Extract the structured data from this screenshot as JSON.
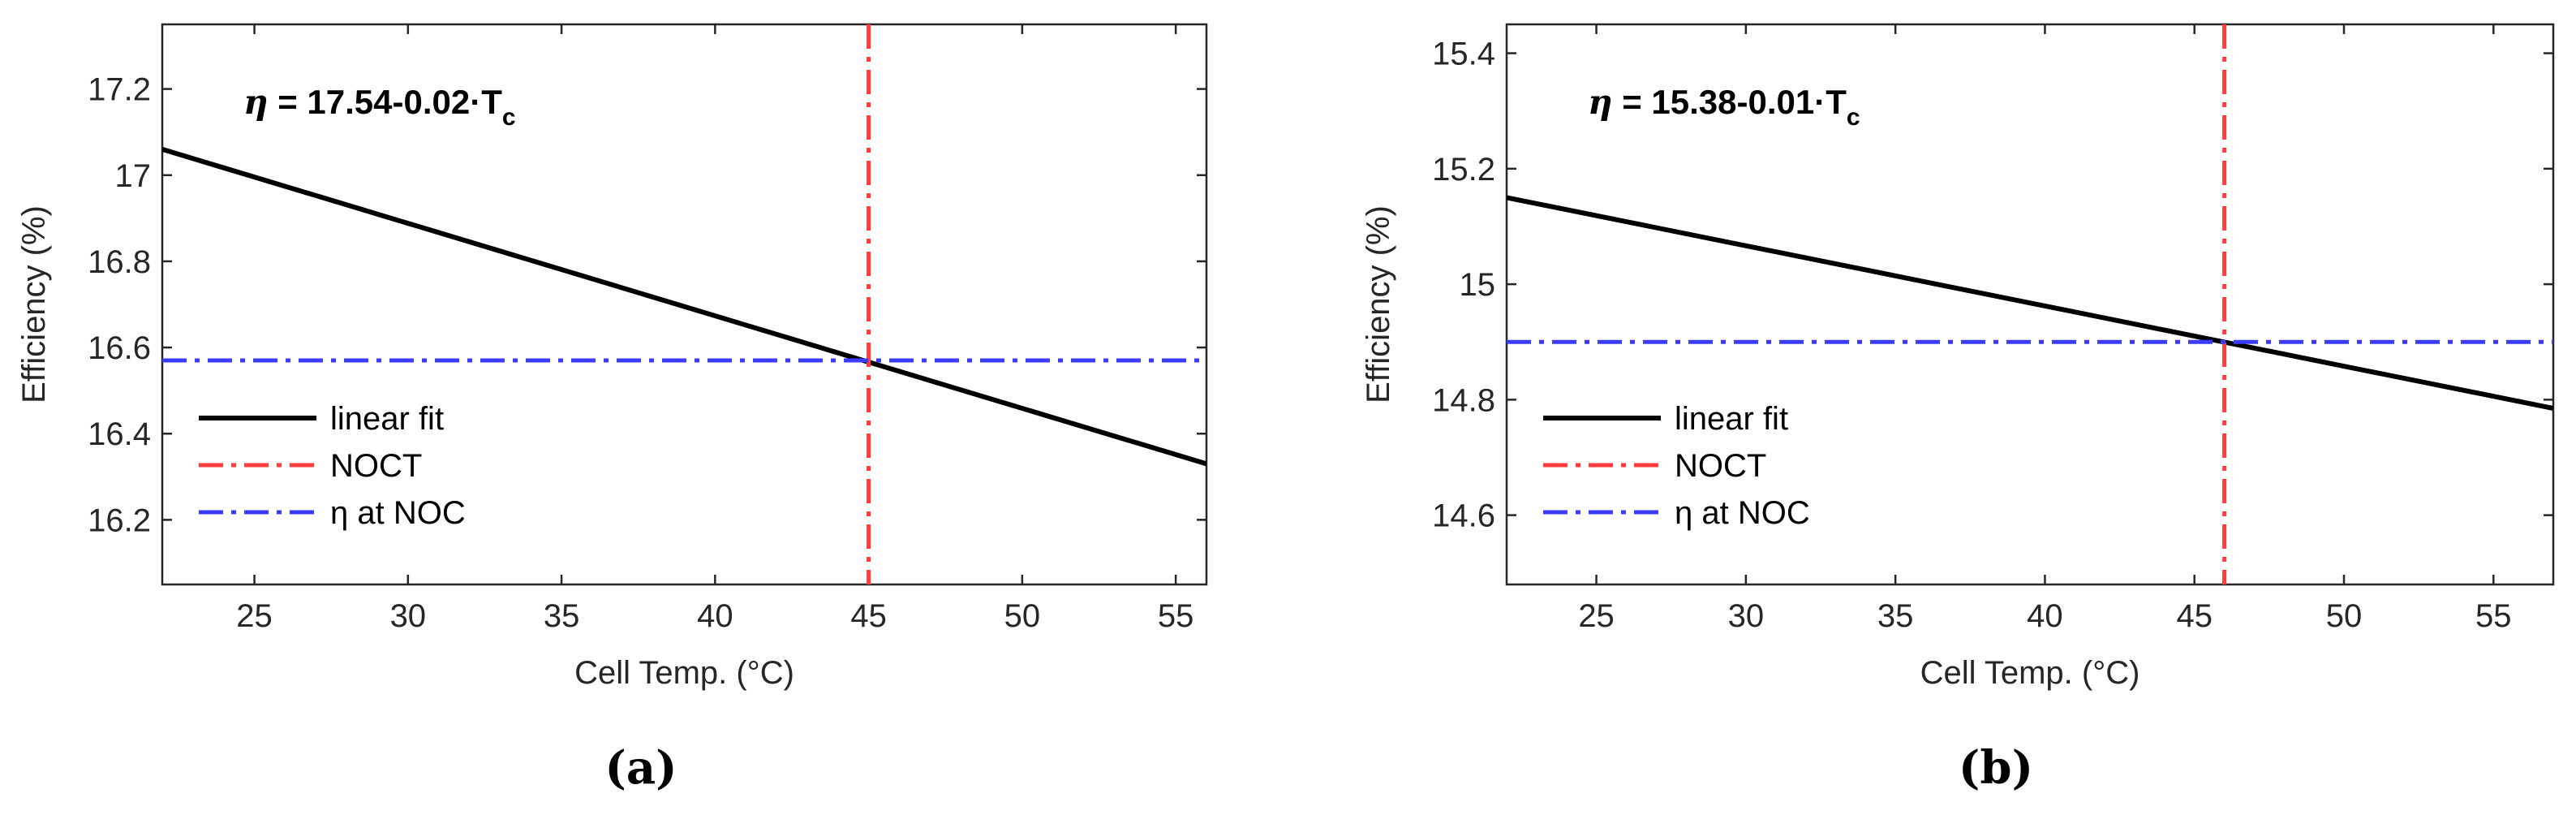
{
  "chart_data": [
    {
      "type": "line",
      "panel": "(a)",
      "equation": {
        "symbol": "η",
        "text": " = 17.54-0.02·T",
        "subscript": "c"
      },
      "xlabel": "Cell Temp. (°C)",
      "ylabel": "Efficiency (%)",
      "xlim": [
        22,
        56
      ],
      "ylim": [
        16.05,
        17.35
      ],
      "xticks": [
        25,
        30,
        35,
        40,
        45,
        50,
        55
      ],
      "yticks": [
        16.2,
        16.4,
        16.6,
        16.8,
        17,
        17.2
      ],
      "grid": false,
      "legend_position": "lower-left",
      "series": [
        {
          "name": "linear fit",
          "kind": "line",
          "x": [
            22,
            56
          ],
          "y": [
            17.06,
            16.33
          ],
          "color": "#000000",
          "dash": "solid"
        },
        {
          "name": "NOCT",
          "kind": "vline",
          "x": 45,
          "color": "#ff3b3b",
          "dash": "dashdot"
        },
        {
          "name": "η at NOC",
          "kind": "hline",
          "y": 16.57,
          "color": "#3b3bff",
          "dash": "dashdot"
        }
      ]
    },
    {
      "type": "line",
      "panel": "(b)",
      "equation": {
        "symbol": "η",
        "text": " = 15.38-0.01·T",
        "subscript": "c"
      },
      "xlabel": "Cell Temp. (°C)",
      "ylabel": "Efficiency (%)",
      "xlim": [
        22,
        57
      ],
      "ylim": [
        14.48,
        15.45
      ],
      "xticks": [
        25,
        30,
        35,
        40,
        45,
        50,
        55
      ],
      "yticks": [
        14.6,
        14.8,
        15,
        15.2,
        15.4
      ],
      "grid": false,
      "legend_position": "lower-left",
      "series": [
        {
          "name": "linear fit",
          "kind": "line",
          "x": [
            22,
            57
          ],
          "y": [
            15.15,
            14.785
          ],
          "color": "#000000",
          "dash": "solid"
        },
        {
          "name": "NOCT",
          "kind": "vline",
          "x": 46,
          "color": "#ff3b3b",
          "dash": "dashdot"
        },
        {
          "name": "η at NOC",
          "kind": "hline",
          "y": 14.9,
          "color": "#3b3bff",
          "dash": "dashdot"
        }
      ]
    }
  ]
}
